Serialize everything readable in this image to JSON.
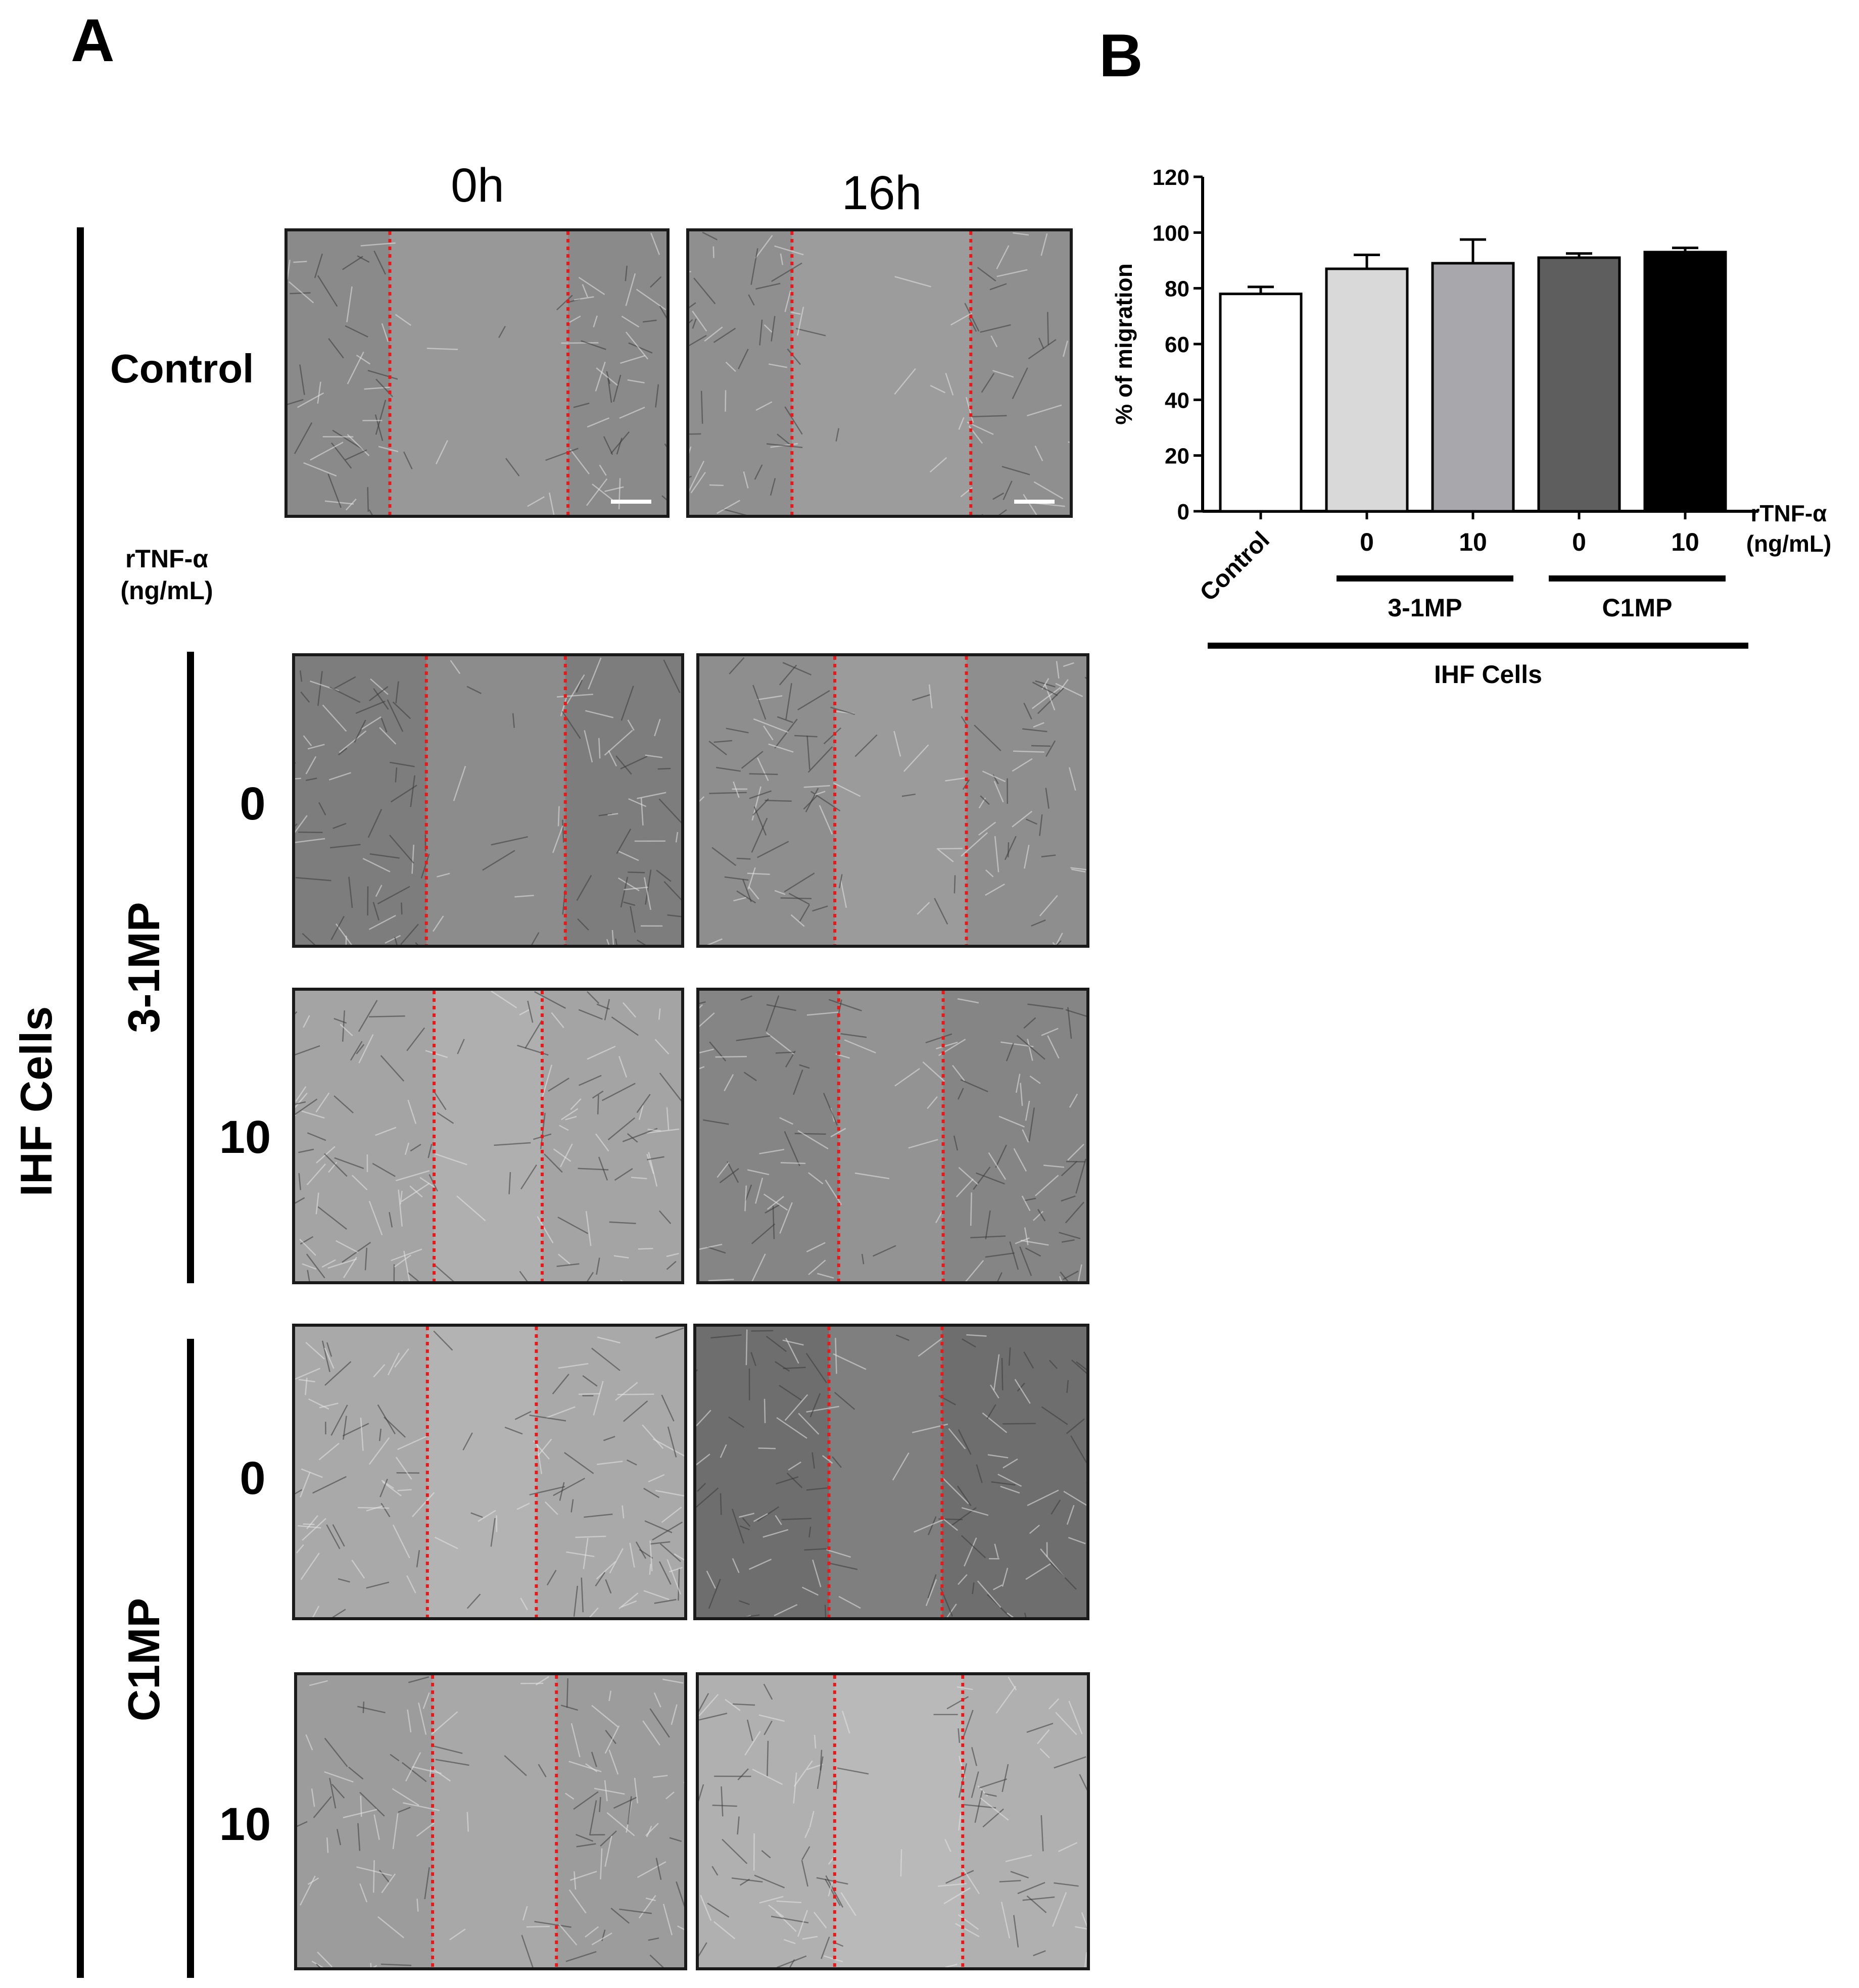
{
  "panel_a": {
    "letter": "A",
    "column_headers": [
      "0h",
      "16h"
    ],
    "group_label": "IHF Cells",
    "control_label": "Control",
    "treatment_header": "rTNF-α\n(ng/mL)",
    "groups": [
      {
        "name": "3-1MP",
        "doses": [
          "0",
          "10"
        ]
      },
      {
        "name": "C1MP",
        "doses": [
          "0",
          "10"
        ]
      }
    ],
    "image_colors": {
      "control_0h": "#8a8a8a",
      "control_16h": "#8f8f8f",
      "m31_0_0h": "#7d7d7d",
      "m31_0_16h": "#8e8e8e",
      "m31_10_0h": "#a4a4a4",
      "m31_10_16h": "#858585",
      "c1_0_0h": "#a9a9a9",
      "c1_0_16h": "#6e6e6e",
      "c1_10_0h": "#9c9c9c",
      "c1_10_16h": "#b0b0b0"
    },
    "gap_line_color": "#e8191b"
  },
  "panel_b": {
    "letter": "B",
    "chart_data": {
      "type": "bar",
      "title": "",
      "ylabel": "% of migration",
      "ylim": [
        0,
        120
      ],
      "yticks": [
        "0",
        "20",
        "40",
        "60",
        "80",
        "100",
        "120"
      ],
      "categories": [
        "Control",
        "0",
        "10",
        "0",
        "10"
      ],
      "values": [
        78,
        87,
        89,
        91,
        93
      ],
      "errors": [
        2.5,
        5,
        8.5,
        1.5,
        1.5
      ],
      "bar_colors": [
        "#ffffff",
        "#d9d9d9",
        "#a8a8ac",
        "#5e5e5e",
        "#000000"
      ],
      "treatment_label": "rTNF-α\n(ng/mL)",
      "group_labels": [
        "3-1MP",
        "C1MP"
      ],
      "overall_label": "IHF Cells",
      "grid": false
    }
  }
}
